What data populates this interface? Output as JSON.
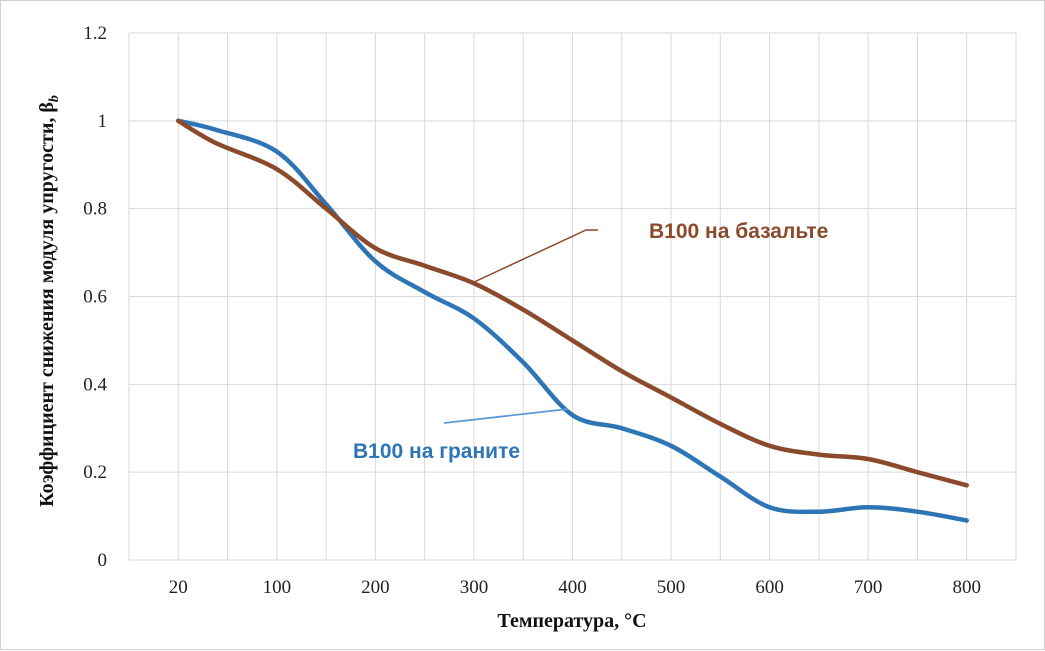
{
  "chart_data": {
    "type": "line",
    "xlabel": "Температура, °С",
    "ylabel": "Коэффициент снижения модуля упругости, β",
    "ylabel_subscript": "b",
    "categories": [
      "20",
      "100",
      "200",
      "300",
      "400",
      "500",
      "600",
      "700",
      "800"
    ],
    "ylim": [
      0,
      1.2
    ],
    "yticks": [
      "0",
      "0.2",
      "0.4",
      "0.6",
      "0.8",
      "1",
      "1.2"
    ],
    "grid": true,
    "series": [
      {
        "name": "B100 на базальте",
        "color": "#8B4A2B",
        "x": [
          20,
          50,
          100,
          150,
          200,
          250,
          300,
          350,
          400,
          450,
          500,
          550,
          600,
          650,
          700,
          750,
          800
        ],
        "values": [
          1.0,
          0.95,
          0.89,
          0.8,
          0.71,
          0.67,
          0.63,
          0.57,
          0.5,
          0.43,
          0.37,
          0.31,
          0.26,
          0.24,
          0.23,
          0.2,
          0.17
        ]
      },
      {
        "name": "B100 на граните",
        "color": "#2E75B6",
        "x": [
          20,
          50,
          100,
          150,
          200,
          250,
          300,
          350,
          400,
          450,
          500,
          550,
          600,
          650,
          700,
          750,
          800
        ],
        "values": [
          1.0,
          0.98,
          0.93,
          0.81,
          0.68,
          0.61,
          0.55,
          0.45,
          0.33,
          0.3,
          0.26,
          0.19,
          0.12,
          0.11,
          0.12,
          0.11,
          0.09
        ]
      }
    ],
    "annotations": [
      {
        "text": "B100 на базальте",
        "color": "#8B4A2B"
      },
      {
        "text": "B100 на граните",
        "color": "#2E75B6"
      }
    ]
  }
}
